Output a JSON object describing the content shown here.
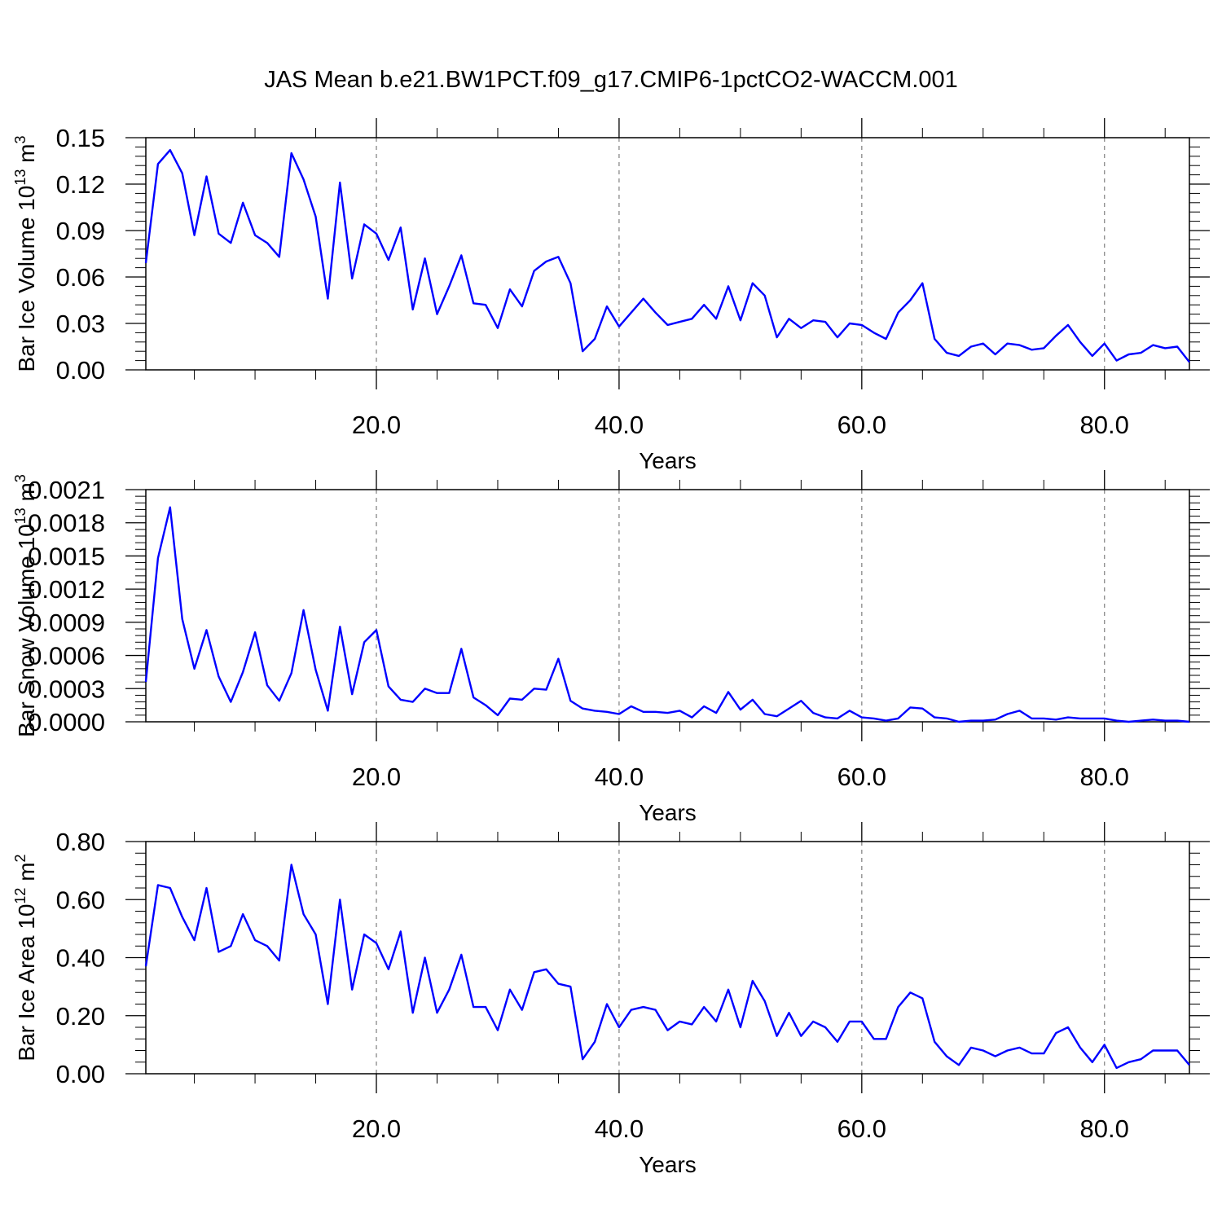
{
  "figure": {
    "title": "JAS Mean b.e21.BW1PCT.f09_g17.CMIP6-1pctCO2-WACCM.001"
  },
  "style": {
    "line_color": "#0000ff",
    "grid_color": "#888888"
  },
  "chart_data": [
    {
      "type": "line",
      "xlabel": "Years",
      "ylabel": {
        "text": "Bar Ice Volume 10",
        "sup1": "13",
        "mid": " m",
        "sup2": "3"
      },
      "xlim": [
        1,
        87
      ],
      "ylim": [
        0,
        0.15
      ],
      "xticks": [
        20,
        40,
        60,
        80
      ],
      "xtick_labels": [
        "20.0",
        "40.0",
        "60.0",
        "80.0"
      ],
      "yticks": [
        0,
        0.03,
        0.06,
        0.09,
        0.12,
        0.15
      ],
      "ytick_labels": [
        "0.00",
        "0.03",
        "0.06",
        "0.09",
        "0.12",
        "0.15"
      ],
      "grid": "dashed vertical at x ticks",
      "x_start": 1,
      "values": [
        0.069,
        0.133,
        0.142,
        0.127,
        0.087,
        0.125,
        0.088,
        0.082,
        0.108,
        0.087,
        0.082,
        0.073,
        0.14,
        0.123,
        0.099,
        0.046,
        0.121,
        0.059,
        0.094,
        0.088,
        0.071,
        0.092,
        0.039,
        0.072,
        0.036,
        0.054,
        0.074,
        0.043,
        0.042,
        0.027,
        0.052,
        0.041,
        0.064,
        0.07,
        0.073,
        0.056,
        0.012,
        0.02,
        0.041,
        0.028,
        0.037,
        0.046,
        0.037,
        0.029,
        0.031,
        0.033,
        0.042,
        0.033,
        0.054,
        0.032,
        0.056,
        0.048,
        0.021,
        0.033,
        0.027,
        0.032,
        0.031,
        0.021,
        0.03,
        0.029,
        0.024,
        0.02,
        0.037,
        0.045,
        0.056,
        0.02,
        0.011,
        0.009,
        0.015,
        0.017,
        0.01,
        0.017,
        0.016,
        0.013,
        0.014,
        0.022,
        0.029,
        0.018,
        0.009,
        0.017,
        0.006,
        0.01,
        0.011,
        0.016,
        0.014,
        0.015,
        0.005
      ]
    },
    {
      "type": "line",
      "xlabel": "Years",
      "ylabel": {
        "text": "Bar Snow Volume 10",
        "sup1": "13",
        "mid": " m",
        "sup2": "3"
      },
      "xlim": [
        1,
        87
      ],
      "ylim": [
        0,
        0.0021
      ],
      "xticks": [
        20,
        40,
        60,
        80
      ],
      "xtick_labels": [
        "20.0",
        "40.0",
        "60.0",
        "80.0"
      ],
      "yticks": [
        0,
        0.0003,
        0.0006,
        0.0009,
        0.0012,
        0.0015,
        0.0018,
        0.0021
      ],
      "ytick_labels": [
        "0.0000",
        "0.0003",
        "0.0006",
        "0.0009",
        "0.0012",
        "0.0015",
        "0.0018",
        "0.0021"
      ],
      "grid": "dashed vertical at x ticks",
      "x_start": 1,
      "values": [
        0.00036,
        0.00148,
        0.00194,
        0.00093,
        0.00048,
        0.00083,
        0.00041,
        0.00018,
        0.00045,
        0.00081,
        0.00033,
        0.00019,
        0.00044,
        0.00101,
        0.00047,
        0.0001,
        0.00086,
        0.00025,
        0.00072,
        0.00083,
        0.00032,
        0.0002,
        0.00018,
        0.0003,
        0.00026,
        0.00026,
        0.00066,
        0.00022,
        0.00015,
        6e-05,
        0.00021,
        0.0002,
        0.0003,
        0.00029,
        0.00057,
        0.00019,
        0.00012,
        0.0001,
        9e-05,
        7e-05,
        0.00014,
        9e-05,
        9e-05,
        8e-05,
        0.0001,
        4e-05,
        0.00014,
        8e-05,
        0.00027,
        0.00011,
        0.0002,
        7e-05,
        5e-05,
        0.00012,
        0.00019,
        8e-05,
        4e-05,
        3e-05,
        0.0001,
        4e-05,
        3e-05,
        1e-05,
        3e-05,
        0.00013,
        0.00012,
        4e-05,
        3e-05,
        0.0,
        1e-05,
        1e-05,
        2e-05,
        7e-05,
        0.0001,
        3e-05,
        3e-05,
        2e-05,
        4e-05,
        3e-05,
        3e-05,
        3e-05,
        1e-05,
        0.0,
        1e-05,
        2e-05,
        1e-05,
        1e-05,
        0.0
      ]
    },
    {
      "type": "line",
      "xlabel": "Years",
      "ylabel": {
        "text": "Bar Ice Area 10",
        "sup1": "12",
        "mid": " m",
        "sup2": "2"
      },
      "xlim": [
        1,
        87
      ],
      "ylim": [
        0,
        0.8
      ],
      "xticks": [
        20,
        40,
        60,
        80
      ],
      "xtick_labels": [
        "20.0",
        "40.0",
        "60.0",
        "80.0"
      ],
      "yticks": [
        0,
        0.2,
        0.4,
        0.6,
        0.8
      ],
      "ytick_labels": [
        "0.00",
        "0.20",
        "0.40",
        "0.60",
        "0.80"
      ],
      "grid": "dashed vertical at x ticks",
      "x_start": 1,
      "values": [
        0.37,
        0.65,
        0.64,
        0.54,
        0.46,
        0.64,
        0.42,
        0.44,
        0.55,
        0.46,
        0.44,
        0.39,
        0.72,
        0.55,
        0.48,
        0.24,
        0.6,
        0.29,
        0.48,
        0.45,
        0.36,
        0.49,
        0.21,
        0.4,
        0.21,
        0.29,
        0.41,
        0.23,
        0.23,
        0.15,
        0.29,
        0.22,
        0.35,
        0.36,
        0.31,
        0.3,
        0.05,
        0.11,
        0.24,
        0.16,
        0.22,
        0.23,
        0.22,
        0.15,
        0.18,
        0.17,
        0.23,
        0.18,
        0.29,
        0.16,
        0.32,
        0.25,
        0.13,
        0.21,
        0.13,
        0.18,
        0.16,
        0.11,
        0.18,
        0.18,
        0.12,
        0.12,
        0.23,
        0.28,
        0.26,
        0.11,
        0.06,
        0.03,
        0.09,
        0.08,
        0.06,
        0.08,
        0.09,
        0.07,
        0.07,
        0.14,
        0.16,
        0.09,
        0.04,
        0.1,
        0.02,
        0.04,
        0.05,
        0.08,
        0.08,
        0.08,
        0.03
      ]
    }
  ]
}
